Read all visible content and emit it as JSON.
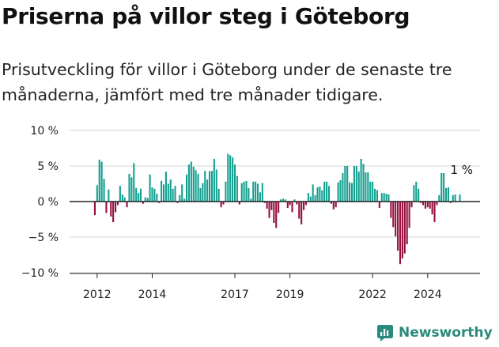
{
  "title": "Priserna på villor steg i Göteborg",
  "subtitle": "Prisutveckling för villor i Göteborg under de senaste tre månaderna, jämfört med tre månader tidigare.",
  "brand": {
    "name": "Newsworthy"
  },
  "colors": {
    "positive": "#13a090",
    "negative": "#950e3e",
    "axis": "#222222",
    "grid": "#d6d6d6",
    "brand": "#2a8a7c"
  },
  "chart_data": {
    "type": "bar",
    "title": "Priserna på villor steg i Göteborg",
    "subtitle": "Prisutveckling för villor i Göteborg under de senaste tre månaderna, jämfört med tre månader tidigare.",
    "xlabel": "",
    "ylabel": "",
    "ylim": [
      -10,
      10
    ],
    "y_ticks": [
      10,
      5,
      0,
      -5,
      -10
    ],
    "y_tick_labels": [
      "10 %",
      "5 %",
      "0 %",
      "−5 %",
      "−10 %"
    ],
    "x_ticks": [
      2012,
      2014,
      2017,
      2019,
      2022,
      2024
    ],
    "x_range": [
      2011.0,
      2025.9
    ],
    "grid": true,
    "legend": "none",
    "series": [
      {
        "values": [
          [
            2011.917,
            -1.9
          ],
          [
            2012.0,
            2.3
          ],
          [
            2012.083,
            5.9
          ],
          [
            2012.167,
            5.6
          ],
          [
            2012.25,
            3.2
          ],
          [
            2012.333,
            -1.6
          ],
          [
            2012.417,
            1.7
          ],
          [
            2012.5,
            -2.1
          ],
          [
            2012.583,
            -2.9
          ],
          [
            2012.667,
            -1.5
          ],
          [
            2012.75,
            -0.5
          ],
          [
            2012.833,
            2.2
          ],
          [
            2012.917,
            1.0
          ],
          [
            2013.0,
            0.6
          ],
          [
            2013.083,
            -0.8
          ],
          [
            2013.167,
            3.9
          ],
          [
            2013.25,
            3.4
          ],
          [
            2013.333,
            5.4
          ],
          [
            2013.417,
            1.9
          ],
          [
            2013.5,
            1.2
          ],
          [
            2013.583,
            1.8
          ],
          [
            2013.667,
            -0.3
          ],
          [
            2013.75,
            0.6
          ],
          [
            2013.833,
            0.5
          ],
          [
            2013.917,
            3.8
          ],
          [
            2013.999,
            2.0
          ],
          [
            2014.083,
            1.8
          ],
          [
            2014.167,
            1.1
          ],
          [
            2014.25,
            -0.2
          ],
          [
            2014.333,
            2.9
          ],
          [
            2014.417,
            2.4
          ],
          [
            2014.5,
            4.2
          ],
          [
            2014.583,
            2.5
          ],
          [
            2014.667,
            3.1
          ],
          [
            2014.75,
            1.8
          ],
          [
            2014.833,
            2.2
          ],
          [
            2014.917,
            -0.2
          ],
          [
            2015.0,
            0.9
          ],
          [
            2015.083,
            2.4
          ],
          [
            2015.167,
            0.4
          ],
          [
            2015.25,
            3.8
          ],
          [
            2015.333,
            5.2
          ],
          [
            2015.417,
            5.6
          ],
          [
            2015.5,
            4.9
          ],
          [
            2015.583,
            4.4
          ],
          [
            2015.667,
            3.9
          ],
          [
            2015.75,
            1.9
          ],
          [
            2015.833,
            2.6
          ],
          [
            2015.917,
            4.3
          ],
          [
            2016.0,
            3.1
          ],
          [
            2016.083,
            4.3
          ],
          [
            2016.167,
            4.3
          ],
          [
            2016.25,
            6.0
          ],
          [
            2016.333,
            4.5
          ],
          [
            2016.417,
            1.8
          ],
          [
            2016.5,
            -0.8
          ],
          [
            2016.583,
            -0.4
          ],
          [
            2016.667,
            2.8
          ],
          [
            2016.75,
            6.7
          ],
          [
            2016.833,
            6.5
          ],
          [
            2016.917,
            6.2
          ],
          [
            2017.0,
            5.2
          ],
          [
            2017.083,
            3.6
          ],
          [
            2017.167,
            -0.4
          ],
          [
            2017.25,
            2.6
          ],
          [
            2017.333,
            2.8
          ],
          [
            2017.417,
            2.9
          ],
          [
            2017.5,
            1.9
          ],
          [
            2017.583,
            0.4
          ],
          [
            2017.667,
            2.8
          ],
          [
            2017.75,
            2.8
          ],
          [
            2017.833,
            2.5
          ],
          [
            2017.917,
            1.3
          ],
          [
            2018.0,
            2.6
          ],
          [
            2018.083,
            -0.2
          ],
          [
            2018.167,
            -1.0
          ],
          [
            2018.25,
            -2.3
          ],
          [
            2018.333,
            -1.2
          ],
          [
            2018.417,
            -3.0
          ],
          [
            2018.5,
            -3.7
          ],
          [
            2018.583,
            -1.6
          ],
          [
            2018.667,
            0.3
          ],
          [
            2018.75,
            0.4
          ],
          [
            2018.833,
            0.3
          ],
          [
            2018.917,
            -0.9
          ],
          [
            2019.0,
            -0.5
          ],
          [
            2019.083,
            -1.5
          ],
          [
            2019.167,
            0.3
          ],
          [
            2019.25,
            -0.4
          ],
          [
            2019.333,
            -2.4
          ],
          [
            2019.417,
            -3.2
          ],
          [
            2019.5,
            -1.2
          ],
          [
            2019.583,
            -0.5
          ],
          [
            2019.667,
            1.2
          ],
          [
            2019.75,
            0.7
          ],
          [
            2019.833,
            2.4
          ],
          [
            2019.917,
            0.9
          ],
          [
            2020.0,
            2.0
          ],
          [
            2020.083,
            2.1
          ],
          [
            2020.167,
            1.6
          ],
          [
            2020.25,
            2.8
          ],
          [
            2020.333,
            2.8
          ],
          [
            2020.417,
            2.2
          ],
          [
            2020.5,
            -0.3
          ],
          [
            2020.583,
            -1.1
          ],
          [
            2020.667,
            -0.8
          ],
          [
            2020.75,
            2.7
          ],
          [
            2020.833,
            3.0
          ],
          [
            2020.917,
            4.0
          ],
          [
            2021.0,
            5.0
          ],
          [
            2021.083,
            5.0
          ],
          [
            2021.167,
            2.7
          ],
          [
            2021.25,
            2.6
          ],
          [
            2021.333,
            5.0
          ],
          [
            2021.417,
            5.0
          ],
          [
            2021.5,
            4.2
          ],
          [
            2021.583,
            6.0
          ],
          [
            2021.667,
            5.3
          ],
          [
            2021.75,
            4.1
          ],
          [
            2021.833,
            4.1
          ],
          [
            2021.917,
            2.8
          ],
          [
            2022.0,
            2.8
          ],
          [
            2022.083,
            1.8
          ],
          [
            2022.167,
            1.6
          ],
          [
            2022.25,
            -0.9
          ],
          [
            2022.333,
            1.2
          ],
          [
            2022.417,
            1.2
          ],
          [
            2022.5,
            1.1
          ],
          [
            2022.583,
            1.0
          ],
          [
            2022.667,
            -2.3
          ],
          [
            2022.75,
            -3.6
          ],
          [
            2022.833,
            -4.9
          ],
          [
            2022.917,
            -6.9
          ],
          [
            2023.0,
            -8.8
          ],
          [
            2023.083,
            -8.0
          ],
          [
            2023.167,
            -7.3
          ],
          [
            2023.25,
            -6.0
          ],
          [
            2023.333,
            -3.7
          ],
          [
            2023.417,
            -0.8
          ],
          [
            2023.5,
            2.3
          ],
          [
            2023.583,
            2.8
          ],
          [
            2023.667,
            1.8
          ],
          [
            2023.75,
            -0.2
          ],
          [
            2023.833,
            -0.5
          ],
          [
            2023.917,
            -1.0
          ],
          [
            2024.0,
            -0.8
          ],
          [
            2024.083,
            -1.0
          ],
          [
            2024.167,
            -1.8
          ],
          [
            2024.25,
            -2.9
          ],
          [
            2024.333,
            -0.5
          ],
          [
            2024.417,
            0.9
          ],
          [
            2024.5,
            4.0
          ],
          [
            2024.583,
            4.0
          ],
          [
            2024.667,
            1.9
          ],
          [
            2024.75,
            2.0
          ],
          [
            2024.833,
            -0.2
          ],
          [
            2024.917,
            0.9
          ],
          [
            2025.0,
            1.0
          ],
          [
            2025.083,
            0.0
          ],
          [
            2025.167,
            1.0
          ]
        ]
      }
    ],
    "annotations": [
      {
        "text": "1 %",
        "x": 2025.167,
        "y": 1.0
      }
    ]
  }
}
